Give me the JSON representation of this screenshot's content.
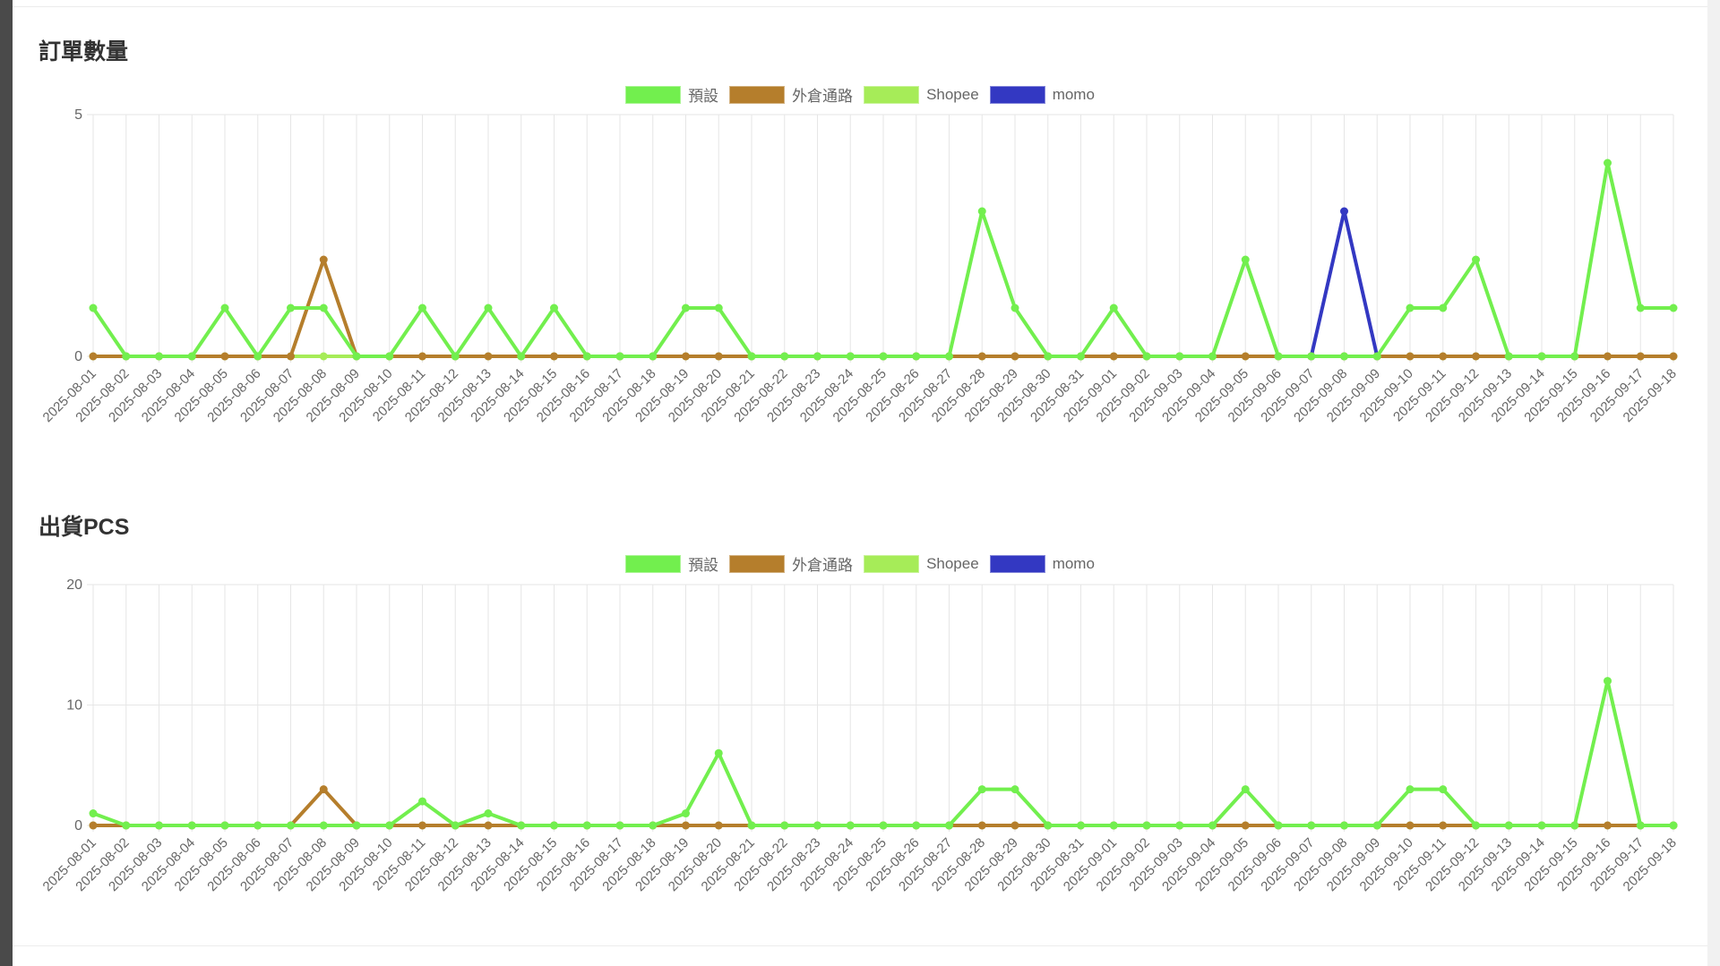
{
  "chart_data": [
    {
      "type": "line",
      "title": "訂單數量",
      "xlabel": "",
      "ylabel": "",
      "ylim": [
        0,
        5
      ],
      "yticks": [
        0,
        5
      ],
      "grid": true,
      "legend_placement": "top-center",
      "categories": [
        "2025-08-01",
        "2025-08-02",
        "2025-08-03",
        "2025-08-04",
        "2025-08-05",
        "2025-08-06",
        "2025-08-07",
        "2025-08-08",
        "2025-08-09",
        "2025-08-10",
        "2025-08-11",
        "2025-08-12",
        "2025-08-13",
        "2025-08-14",
        "2025-08-15",
        "2025-08-16",
        "2025-08-17",
        "2025-08-18",
        "2025-08-19",
        "2025-08-20",
        "2025-08-21",
        "2025-08-22",
        "2025-08-23",
        "2025-08-24",
        "2025-08-25",
        "2025-08-26",
        "2025-08-27",
        "2025-08-28",
        "2025-08-29",
        "2025-08-30",
        "2025-08-31",
        "2025-09-01",
        "2025-09-02",
        "2025-09-03",
        "2025-09-04",
        "2025-09-05",
        "2025-09-06",
        "2025-09-07",
        "2025-09-08",
        "2025-09-09",
        "2025-09-10",
        "2025-09-11",
        "2025-09-12",
        "2025-09-13",
        "2025-09-14",
        "2025-09-15",
        "2025-09-16",
        "2025-09-17",
        "2025-09-18"
      ],
      "series": [
        {
          "name": "預設",
          "color": "#72ef4e",
          "values": [
            1,
            0,
            0,
            0,
            1,
            0,
            1,
            1,
            0,
            0,
            1,
            0,
            1,
            0,
            1,
            0,
            0,
            0,
            1,
            1,
            0,
            0,
            0,
            0,
            0,
            0,
            0,
            3,
            1,
            0,
            0,
            1,
            0,
            0,
            0,
            2,
            0,
            0,
            0,
            0,
            1,
            1,
            2,
            0,
            0,
            0,
            4,
            1,
            1
          ]
        },
        {
          "name": "外倉通路",
          "color": "#b57e2c",
          "values": [
            0,
            0,
            0,
            0,
            0,
            0,
            0,
            2,
            0,
            0,
            0,
            0,
            0,
            0,
            0,
            0,
            0,
            0,
            0,
            0,
            0,
            0,
            0,
            0,
            0,
            0,
            0,
            0,
            0,
            0,
            0,
            0,
            0,
            0,
            0,
            0,
            0,
            0,
            0,
            0,
            0,
            0,
            0,
            0,
            0,
            0,
            0,
            0,
            0
          ]
        },
        {
          "name": "Shopee",
          "color": "#a6ec58",
          "values": [
            0,
            0,
            0,
            0,
            0,
            0,
            0,
            0,
            0,
            0,
            0,
            0,
            0,
            0,
            0,
            0,
            0,
            0,
            0,
            0,
            0,
            0,
            0,
            0,
            0,
            0,
            0,
            0,
            0,
            0,
            0,
            0,
            0,
            0,
            0,
            0,
            0,
            0,
            0,
            0,
            0,
            0,
            0,
            0,
            0,
            0,
            0,
            0,
            0
          ]
        },
        {
          "name": "momo",
          "color": "#3338c2",
          "values": [
            null,
            null,
            null,
            null,
            null,
            null,
            null,
            null,
            null,
            null,
            null,
            null,
            null,
            null,
            null,
            null,
            null,
            null,
            null,
            null,
            null,
            null,
            null,
            null,
            null,
            null,
            null,
            null,
            null,
            null,
            null,
            null,
            null,
            null,
            null,
            null,
            null,
            0,
            3,
            0,
            null,
            null,
            null,
            null,
            null,
            null,
            null,
            null,
            null
          ]
        }
      ]
    },
    {
      "type": "line",
      "title": "出貨PCS",
      "xlabel": "",
      "ylabel": "",
      "ylim": [
        0,
        20
      ],
      "yticks": [
        0,
        10,
        20
      ],
      "grid": true,
      "legend_placement": "top-center",
      "categories": [
        "2025-08-01",
        "2025-08-02",
        "2025-08-03",
        "2025-08-04",
        "2025-08-05",
        "2025-08-06",
        "2025-08-07",
        "2025-08-08",
        "2025-08-09",
        "2025-08-10",
        "2025-08-11",
        "2025-08-12",
        "2025-08-13",
        "2025-08-14",
        "2025-08-15",
        "2025-08-16",
        "2025-08-17",
        "2025-08-18",
        "2025-08-19",
        "2025-08-20",
        "2025-08-21",
        "2025-08-22",
        "2025-08-23",
        "2025-08-24",
        "2025-08-25",
        "2025-08-26",
        "2025-08-27",
        "2025-08-28",
        "2025-08-29",
        "2025-08-30",
        "2025-08-31",
        "2025-09-01",
        "2025-09-02",
        "2025-09-03",
        "2025-09-04",
        "2025-09-05",
        "2025-09-06",
        "2025-09-07",
        "2025-09-08",
        "2025-09-09",
        "2025-09-10",
        "2025-09-11",
        "2025-09-12",
        "2025-09-13",
        "2025-09-14",
        "2025-09-15",
        "2025-09-16",
        "2025-09-17",
        "2025-09-18"
      ],
      "series": [
        {
          "name": "預設",
          "color": "#72ef4e",
          "values": [
            1,
            0,
            0,
            0,
            0,
            0,
            0,
            0,
            0,
            0,
            2,
            0,
            1,
            0,
            0,
            0,
            0,
            0,
            1,
            6,
            0,
            0,
            0,
            0,
            0,
            0,
            0,
            3,
            3,
            0,
            0,
            0,
            0,
            0,
            0,
            3,
            0,
            0,
            0,
            0,
            3,
            3,
            0,
            0,
            0,
            0,
            12,
            0,
            0
          ]
        },
        {
          "name": "外倉通路",
          "color": "#b57e2c",
          "values": [
            0,
            0,
            0,
            0,
            0,
            0,
            0,
            3,
            0,
            0,
            0,
            0,
            0,
            0,
            0,
            0,
            0,
            0,
            0,
            0,
            0,
            0,
            0,
            0,
            0,
            0,
            0,
            0,
            0,
            0,
            0,
            0,
            0,
            0,
            0,
            0,
            0,
            0,
            0,
            0,
            0,
            0,
            0,
            0,
            0,
            0,
            0,
            0,
            0
          ]
        },
        {
          "name": "Shopee",
          "color": "#a6ec58",
          "values": [
            0,
            0,
            0,
            0,
            0,
            0,
            0,
            0,
            0,
            0,
            0,
            0,
            0,
            0,
            0,
            0,
            0,
            0,
            0,
            0,
            0,
            0,
            0,
            0,
            0,
            0,
            0,
            0,
            0,
            0,
            0,
            0,
            0,
            0,
            0,
            0,
            0,
            0,
            0,
            0,
            0,
            0,
            0,
            0,
            0,
            0,
            0,
            0,
            0
          ]
        },
        {
          "name": "momo",
          "color": "#3338c2",
          "values": [
            null,
            null,
            null,
            null,
            null,
            null,
            null,
            null,
            null,
            null,
            null,
            null,
            null,
            null,
            null,
            null,
            null,
            null,
            null,
            null,
            null,
            null,
            null,
            null,
            null,
            null,
            null,
            null,
            null,
            null,
            null,
            null,
            null,
            null,
            null,
            null,
            null,
            null,
            null,
            null,
            null,
            null,
            null,
            null,
            null,
            null,
            null,
            null,
            null
          ]
        }
      ]
    }
  ]
}
